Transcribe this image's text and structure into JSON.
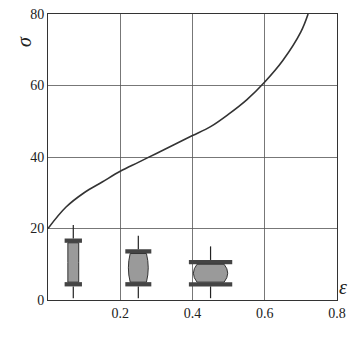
{
  "chart_data": {
    "type": "line",
    "x": [
      0,
      0.05,
      0.1,
      0.15,
      0.2,
      0.25,
      0.3,
      0.35,
      0.4,
      0.45,
      0.5,
      0.55,
      0.6,
      0.65,
      0.7,
      0.72
    ],
    "series": [
      {
        "name": "σ",
        "color": "#333333",
        "values": [
          20,
          26,
          30,
          33,
          36,
          38.5,
          41,
          43.5,
          46,
          48.5,
          52,
          56,
          61,
          67,
          75,
          80
        ]
      }
    ],
    "xlabel": "ε",
    "ylabel": "σ",
    "xlim": [
      0,
      0.8
    ],
    "xticks": [
      0.2,
      0.4,
      0.6,
      0.8
    ],
    "ylim": [
      0,
      80
    ],
    "yticks": [
      0,
      20,
      40,
      60,
      80
    ],
    "grid": true
  }
}
